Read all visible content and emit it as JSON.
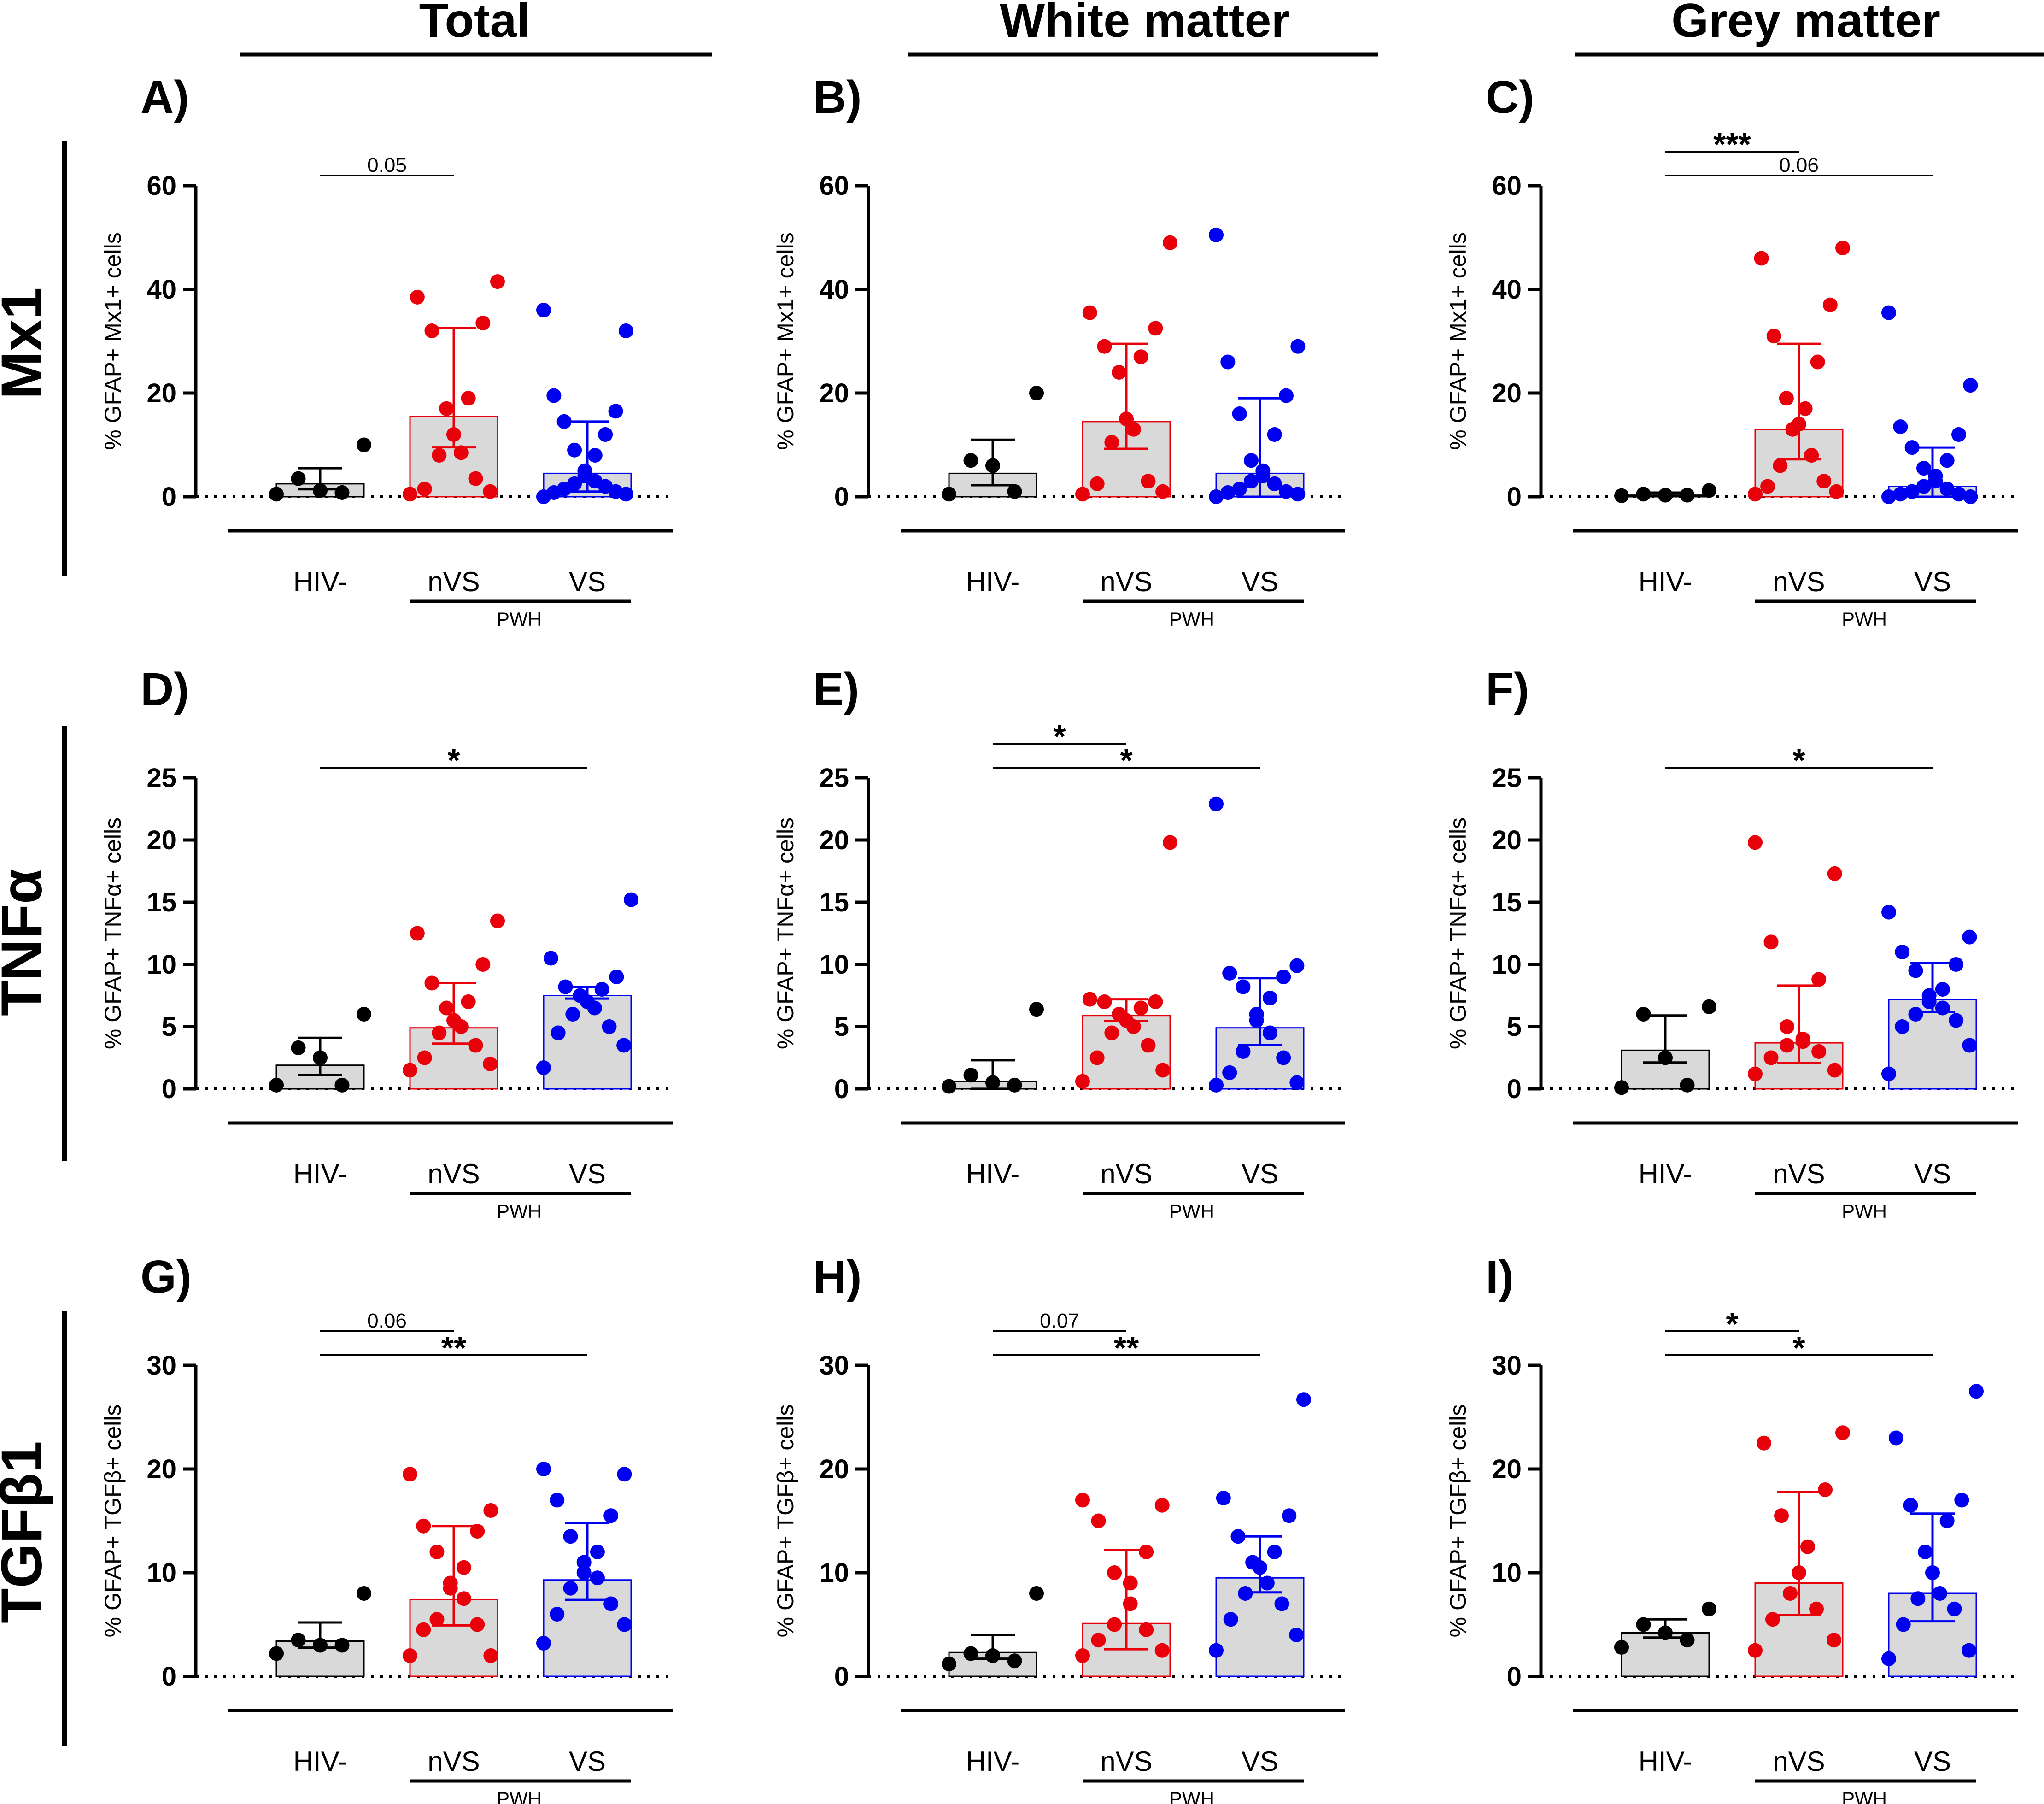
{
  "column_headers": [
    "Total",
    "White matter",
    "Grey matter"
  ],
  "row_labels": [
    "Mx1",
    "TNFα",
    "TGFβ1"
  ],
  "group_labels": [
    "HIV-",
    "nVS",
    "VS"
  ],
  "pwh_label": "PWH",
  "colors": {
    "hiv_neg": "#000000",
    "nvs": "#e8000b",
    "vs": "#0000f0",
    "bar_fill": "#d9d9d9"
  },
  "chart_data": [
    {
      "panel": "A)",
      "type": "bar",
      "ylabel": "% GFAP+ Mx1+ cells",
      "ylim": [
        0,
        60
      ],
      "yticks": [
        0,
        20,
        40,
        60
      ],
      "categories": [
        "HIV-",
        "nVS",
        "VS"
      ],
      "series": [
        {
          "name": "HIV-",
          "mean": 2.5,
          "sd_upper": 5.5,
          "points": [
            0.5,
            0.8,
            1.2,
            3.5,
            10
          ]
        },
        {
          "name": "nVS",
          "mean": 15.5,
          "sd_upper": 32.5,
          "points": [
            0.5,
            1,
            1.5,
            3.5,
            8,
            8.5,
            12,
            17,
            19,
            32,
            33.5,
            38.5,
            41.5
          ]
        },
        {
          "name": "VS",
          "mean": 4.5,
          "sd_upper": 14.5,
          "points": [
            0,
            0.5,
            0.8,
            1,
            1.5,
            2,
            2.5,
            3,
            4,
            5,
            8,
            9,
            12,
            14.5,
            16.5,
            19.5,
            32,
            36
          ]
        }
      ],
      "annotations": [
        {
          "from": "HIV-",
          "to": "nVS",
          "text": "0.05"
        }
      ]
    },
    {
      "panel": "B)",
      "type": "bar",
      "ylabel": "% GFAP+ Mx1+ cells",
      "ylim": [
        0,
        60
      ],
      "yticks": [
        0,
        20,
        40,
        60
      ],
      "categories": [
        "HIV-",
        "nVS",
        "VS"
      ],
      "series": [
        {
          "name": "HIV-",
          "mean": 4.5,
          "sd_upper": 11,
          "points": [
            0.5,
            1,
            6,
            7,
            20
          ]
        },
        {
          "name": "nVS",
          "mean": 14.5,
          "sd_upper": 29.5,
          "points": [
            0.5,
            1,
            2.5,
            3,
            10.5,
            13,
            15,
            24,
            27,
            29,
            32.5,
            35.5,
            49
          ]
        },
        {
          "name": "VS",
          "mean": 4.5,
          "sd_upper": 19,
          "points": [
            0,
            0.5,
            0.8,
            1,
            1.5,
            2.5,
            3,
            4,
            5,
            7,
            12,
            16,
            19.5,
            26,
            29,
            50.5
          ]
        }
      ],
      "annotations": []
    },
    {
      "panel": "C)",
      "type": "bar",
      "ylabel": "% GFAP+ Mx1+ cells",
      "ylim": [
        0,
        60
      ],
      "yticks": [
        0,
        20,
        40,
        60
      ],
      "categories": [
        "HIV-",
        "nVS",
        "VS"
      ],
      "series": [
        {
          "name": "HIV-",
          "mean": 0.3,
          "sd_upper": 0.8,
          "points": [
            0.2,
            0.3,
            0.3,
            0.5,
            1.2
          ]
        },
        {
          "name": "nVS",
          "mean": 13,
          "sd_upper": 29.5,
          "points": [
            0.5,
            1,
            2,
            3,
            6,
            8,
            13,
            14,
            17,
            19,
            26,
            31,
            37,
            46,
            48
          ]
        },
        {
          "name": "VS",
          "mean": 2,
          "sd_upper": 9.5,
          "points": [
            0,
            0,
            0.5,
            0.5,
            1,
            1.5,
            2,
            3,
            4,
            5.5,
            7,
            9.5,
            12,
            13.5,
            21.5,
            35.5
          ]
        }
      ],
      "annotations": [
        {
          "from": "HIV-",
          "to": "nVS",
          "text": "***"
        },
        {
          "from": "HIV-",
          "to": "VS",
          "text": "0.06"
        }
      ]
    },
    {
      "panel": "D)",
      "type": "bar",
      "ylabel": "% GFAP+ TNFα+ cells",
      "ylim": [
        0,
        25
      ],
      "yticks": [
        0,
        5,
        10,
        15,
        20,
        25
      ],
      "categories": [
        "HIV-",
        "nVS",
        "VS"
      ],
      "series": [
        {
          "name": "HIV-",
          "mean": 1.9,
          "sd_upper": 4.1,
          "points": [
            0.3,
            0.3,
            2.5,
            3.3,
            6
          ]
        },
        {
          "name": "nVS",
          "mean": 4.9,
          "sd_upper": 8.5,
          "points": [
            1.5,
            2,
            2.5,
            3.5,
            4.5,
            5,
            5.5,
            6.5,
            7,
            8.5,
            10,
            12.5,
            13.5
          ]
        },
        {
          "name": "VS",
          "mean": 7.5,
          "sd_upper": 8.2,
          "points": [
            1.7,
            3.5,
            4.5,
            5,
            6,
            6.5,
            7,
            7.5,
            8,
            8.2,
            9,
            10.5,
            15.2
          ]
        }
      ],
      "annotations": [
        {
          "from": "HIV-",
          "to": "VS",
          "text": "*"
        }
      ]
    },
    {
      "panel": "E)",
      "type": "bar",
      "ylabel": "% GFAP+ TNFα+ cells",
      "ylim": [
        0,
        25
      ],
      "yticks": [
        0,
        5,
        10,
        15,
        20,
        25
      ],
      "categories": [
        "HIV-",
        "nVS",
        "VS"
      ],
      "series": [
        {
          "name": "HIV-",
          "mean": 0.6,
          "sd_upper": 2.3,
          "points": [
            0.2,
            0.3,
            0.5,
            1.1,
            6.4
          ]
        },
        {
          "name": "nVS",
          "mean": 5.9,
          "sd_upper": 7.2,
          "points": [
            0.6,
            1.5,
            2.5,
            3.5,
            4.5,
            5,
            5.5,
            6,
            6.5,
            7,
            7,
            7.2,
            19.8
          ]
        },
        {
          "name": "VS",
          "mean": 4.9,
          "sd_upper": 8.9,
          "points": [
            0.3,
            0.5,
            1.3,
            2.5,
            3,
            4.5,
            5.5,
            6,
            7.3,
            8.2,
            9,
            9.3,
            9.9,
            22.9
          ]
        }
      ],
      "annotations": [
        {
          "from": "HIV-",
          "to": "nVS",
          "text": "*"
        },
        {
          "from": "HIV-",
          "to": "VS",
          "text": "*"
        }
      ]
    },
    {
      "panel": "F)",
      "type": "bar",
      "ylabel": "% GFAP+ TNFα+ cells",
      "ylim": [
        0,
        25
      ],
      "yticks": [
        0,
        5,
        10,
        15,
        20,
        25
      ],
      "categories": [
        "HIV-",
        "nVS",
        "VS"
      ],
      "series": [
        {
          "name": "HIV-",
          "mean": 3.1,
          "sd_upper": 5.9,
          "points": [
            0.1,
            0.3,
            2.5,
            6,
            6.6
          ]
        },
        {
          "name": "nVS",
          "mean": 3.7,
          "sd_upper": 8.3,
          "points": [
            1.2,
            1.5,
            2.5,
            3,
            3.5,
            3.8,
            4,
            5,
            8.8,
            11.8,
            17.3,
            19.8
          ]
        },
        {
          "name": "VS",
          "mean": 7.2,
          "sd_upper": 10.1,
          "points": [
            1.2,
            3.5,
            5,
            5.5,
            6,
            6.5,
            7,
            7.5,
            8,
            9.5,
            10,
            11,
            12.2,
            14.2
          ]
        }
      ],
      "annotations": [
        {
          "from": "HIV-",
          "to": "VS",
          "text": "*"
        }
      ]
    },
    {
      "panel": "G)",
      "type": "bar",
      "ylabel": "% GFAP+ TGFβ+ cells",
      "ylim": [
        0,
        30
      ],
      "yticks": [
        0,
        10,
        20,
        30
      ],
      "categories": [
        "HIV-",
        "nVS",
        "VS"
      ],
      "series": [
        {
          "name": "HIV-",
          "mean": 3.4,
          "sd_upper": 5.2,
          "points": [
            2.2,
            3,
            3,
            3.5,
            8
          ]
        },
        {
          "name": "nVS",
          "mean": 7.4,
          "sd_upper": 14.5,
          "points": [
            2,
            2,
            4.5,
            5,
            5.5,
            7.5,
            8.5,
            9,
            10.5,
            12,
            14,
            14.5,
            16,
            19.5
          ]
        },
        {
          "name": "VS",
          "mean": 9.3,
          "sd_upper": 14.8,
          "points": [
            3.2,
            5,
            6,
            7,
            8.5,
            9.5,
            10,
            11,
            12,
            13.5,
            15.5,
            17,
            19.5,
            20
          ]
        }
      ],
      "annotations": [
        {
          "from": "HIV-",
          "to": "nVS",
          "text": "0.06"
        },
        {
          "from": "HIV-",
          "to": "VS",
          "text": "**"
        }
      ]
    },
    {
      "panel": "H)",
      "type": "bar",
      "ylabel": "% GFAP+ TGFβ+ cells",
      "ylim": [
        0,
        30
      ],
      "yticks": [
        0,
        10,
        20,
        30
      ],
      "categories": [
        "HIV-",
        "nVS",
        "VS"
      ],
      "series": [
        {
          "name": "HIV-",
          "mean": 2.3,
          "sd_upper": 4,
          "points": [
            1.2,
            1.5,
            2,
            2.2,
            8
          ]
        },
        {
          "name": "nVS",
          "mean": 5.1,
          "sd_upper": 12.2,
          "points": [
            2,
            2.5,
            3.5,
            4.5,
            5,
            7,
            9,
            10,
            12,
            15,
            16.5,
            17
          ]
        },
        {
          "name": "VS",
          "mean": 9.5,
          "sd_upper": 13.5,
          "points": [
            2.5,
            4,
            5.5,
            7,
            8,
            9,
            10.5,
            11,
            12,
            13.5,
            15.5,
            17.2,
            26.7
          ]
        }
      ],
      "annotations": [
        {
          "from": "HIV-",
          "to": "nVS",
          "text": "0.07"
        },
        {
          "from": "HIV-",
          "to": "VS",
          "text": "**"
        }
      ]
    },
    {
      "panel": "I)",
      "type": "bar",
      "ylabel": "% GFAP+ TGFβ+ cells",
      "ylim": [
        0,
        30
      ],
      "yticks": [
        0,
        10,
        20,
        30
      ],
      "categories": [
        "HIV-",
        "nVS",
        "VS"
      ],
      "series": [
        {
          "name": "HIV-",
          "mean": 4.2,
          "sd_upper": 5.5,
          "points": [
            2.8,
            3.5,
            4.2,
            5,
            6.5
          ]
        },
        {
          "name": "nVS",
          "mean": 9,
          "sd_upper": 17.8,
          "points": [
            2.5,
            3.5,
            5.5,
            6.5,
            8,
            10,
            12.5,
            15.5,
            18,
            22.5,
            23.5
          ]
        },
        {
          "name": "VS",
          "mean": 8,
          "sd_upper": 15.7,
          "points": [
            1.7,
            2.5,
            5,
            6.5,
            7.5,
            8,
            10,
            12,
            15,
            16.5,
            17,
            23,
            27.5
          ]
        }
      ],
      "annotations": [
        {
          "from": "HIV-",
          "to": "nVS",
          "text": "*"
        },
        {
          "from": "HIV-",
          "to": "VS",
          "text": "*"
        }
      ]
    }
  ]
}
